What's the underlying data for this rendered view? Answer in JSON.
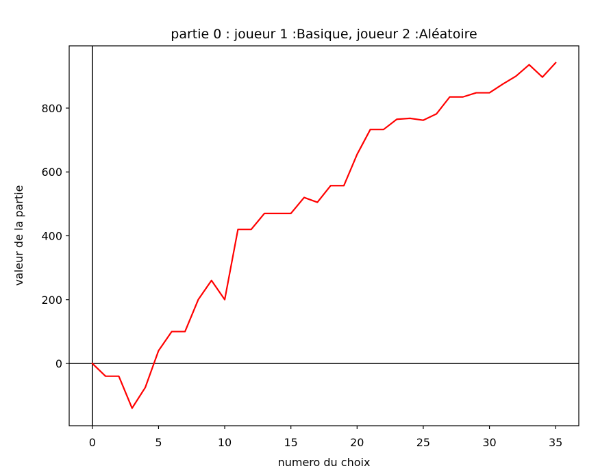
{
  "chart_data": {
    "type": "line",
    "title": "partie 0 : joueur 1 :Basique, joueur 2 :Aléatoire",
    "xlabel": "numero du choix",
    "ylabel": "valeur de la partie",
    "xlim": [
      -1.75,
      36.75
    ],
    "ylim": [
      -195,
      995
    ],
    "xticks": [
      0,
      5,
      10,
      15,
      20,
      25,
      30,
      35
    ],
    "yticks": [
      0,
      200,
      400,
      600,
      800
    ],
    "grid": false,
    "reference_lines": {
      "horizontal_y": 0,
      "vertical_x": 0,
      "color": "#000000"
    },
    "series": [
      {
        "color": "#ff0000",
        "x": [
          0,
          1,
          2,
          3,
          4,
          5,
          6,
          7,
          8,
          9,
          10,
          11,
          12,
          13,
          14,
          15,
          16,
          17,
          18,
          19,
          20,
          21,
          22,
          23,
          24,
          25,
          26,
          27,
          28,
          29,
          30,
          31,
          32,
          33,
          34,
          35
        ],
        "y": [
          0,
          -40,
          -40,
          -140,
          -75,
          40,
          100,
          100,
          200,
          260,
          200,
          420,
          420,
          470,
          470,
          470,
          520,
          505,
          557,
          557,
          655,
          733,
          733,
          765,
          768,
          762,
          782,
          835,
          835,
          848,
          848,
          875,
          900,
          936,
          897,
          942
        ]
      }
    ]
  }
}
